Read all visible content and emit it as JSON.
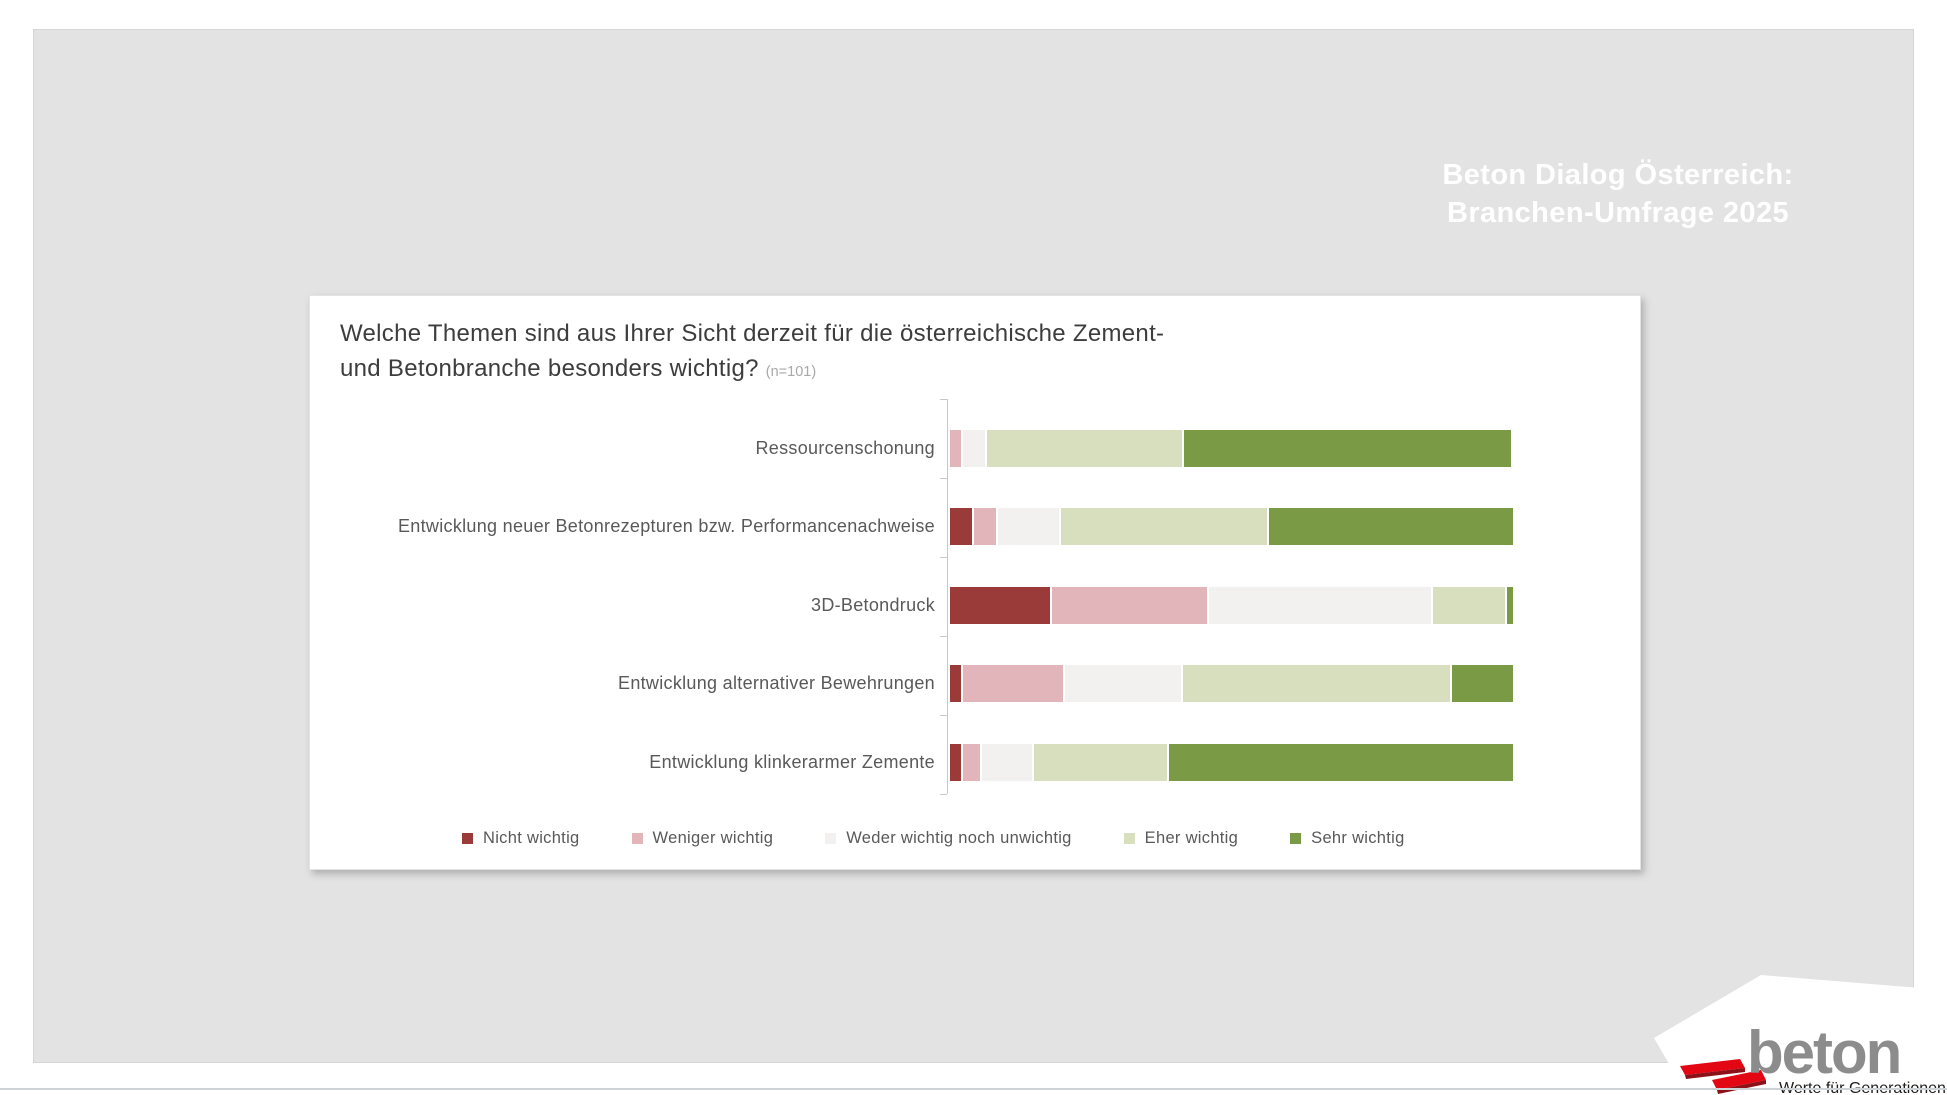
{
  "slide": {
    "header_title_line1": "Beton Dialog Österreich:",
    "header_title_line2": "Branchen-Umfrage 2025"
  },
  "question": {
    "line1": "Welche Themen sind aus Ihrer Sicht derzeit für die österreichische Zement-",
    "line2": "und Betonbranche besonders wichtig?",
    "sample_note": "(n=101)"
  },
  "chart_data": {
    "type": "bar",
    "orientation": "horizontal-stacked",
    "unit": "percent",
    "axis_range": [
      0,
      100
    ],
    "grid": false,
    "legend_position": "bottom",
    "categories": [
      "Ressourcenschonung",
      "Entwicklung neuer Betonrezepturen bzw. Performancenachweise",
      "3D-Betondruck",
      "Entwicklung alternativer Bewehrungen",
      "Entwicklung klinkerarmer Zemente"
    ],
    "series": [
      {
        "name": "Nicht wichtig",
        "color": "#9a3b39",
        "values": [
          0,
          4,
          18,
          2,
          2
        ]
      },
      {
        "name": "Weniger wichtig",
        "color": "#e2b5ba",
        "values": [
          2,
          4,
          28,
          18,
          3
        ]
      },
      {
        "name": "Weder wichtig noch unwichtig",
        "color": "#f2f1ef",
        "values": [
          4,
          11,
          40,
          21,
          9
        ]
      },
      {
        "name": "Eher wichtig",
        "color": "#d7dfbe",
        "values": [
          35,
          37,
          13,
          48,
          24
        ]
      },
      {
        "name": "Sehr wichtig",
        "color": "#7b9a45",
        "values": [
          59,
          44,
          1,
          11,
          62
        ]
      }
    ]
  },
  "logo": {
    "brand": "beton",
    "tagline": "Werte für Generationen",
    "brand_color": "#8c8c8c",
    "accent_red": "#e30613"
  },
  "palette": {
    "slide_background": "#e3e3e3",
    "card_background": "#ffffff",
    "deck_title_text": "#ffffff",
    "question_text": "#3d3d3d",
    "label_text": "#595959"
  }
}
